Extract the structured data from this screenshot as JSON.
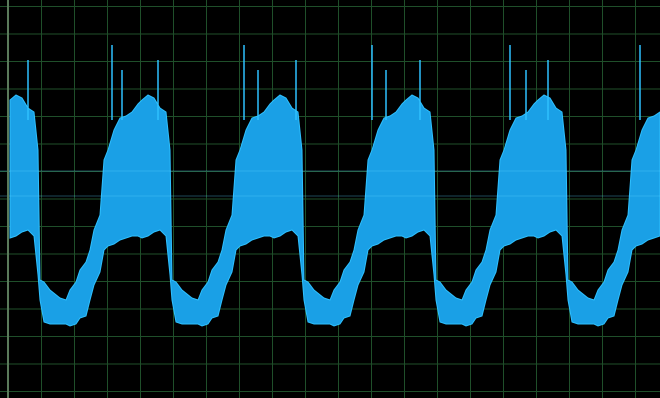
{
  "scope": {
    "background_color": "#000000",
    "grid_color": "#1f4f2a",
    "border_color": "#5a7a5a",
    "trace_fill_color": "#1aa0e6",
    "trace_edge_color": "#2ec0ff",
    "center_line_color": "#55d0ff",
    "grid_divisions_x": 20,
    "grid_divisions_y": 12
  }
}
